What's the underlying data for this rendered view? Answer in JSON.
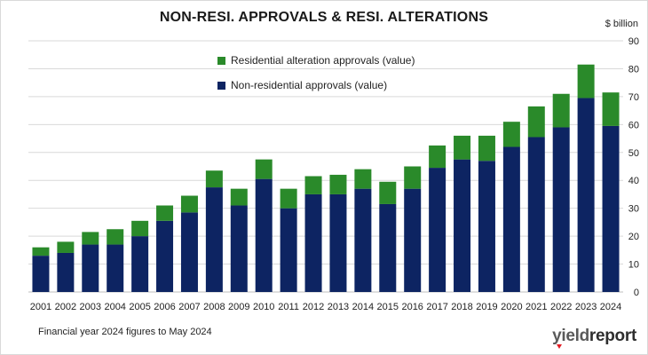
{
  "chart_data": {
    "type": "bar",
    "stacked": true,
    "title": "NON-RESI. APPROVALS & RESI. ALTERATIONS",
    "ylabel": "$ billion",
    "ylim": [
      0,
      90
    ],
    "yticks": [
      0,
      10,
      20,
      30,
      40,
      50,
      60,
      70,
      80,
      90
    ],
    "y_axis_side": "right",
    "grid": true,
    "legend_position": "top-center",
    "categories": [
      "2001",
      "2002",
      "2003",
      "2004",
      "2005",
      "2006",
      "2007",
      "2008",
      "2009",
      "2010",
      "2011",
      "2012",
      "2013",
      "2014",
      "2015",
      "2016",
      "2017",
      "2018",
      "2019",
      "2020",
      "2021",
      "2022",
      "2023",
      "2024"
    ],
    "series": [
      {
        "name": "Non-residential approvals (value)",
        "color": "#0d2462",
        "values": [
          13,
          14,
          17,
          17,
          20,
          25.5,
          28.5,
          37.5,
          31,
          40.5,
          30,
          35,
          35,
          37,
          31.5,
          37,
          44.5,
          47.5,
          47,
          52,
          55.5,
          59,
          69.5,
          59.5
        ]
      },
      {
        "name": "Residential alteration approvals (value)",
        "color": "#2a8a2a",
        "values": [
          3,
          4,
          4.5,
          5.5,
          5.5,
          5.5,
          6,
          6,
          6,
          7,
          7,
          6.5,
          7,
          7,
          8,
          8,
          8,
          8.5,
          9,
          9,
          11,
          12,
          12,
          12
        ]
      }
    ]
  },
  "legend": {
    "items": [
      {
        "label": "Residential alteration approvals (value)",
        "color": "#2a8a2a"
      },
      {
        "label": "Non-residential approvals (value)",
        "color": "#0d2462"
      }
    ]
  },
  "footnote": "Financial year 2024 figures to May 2024",
  "brand": {
    "part1": "yield",
    "part2": "report"
  },
  "colors": {
    "gridline": "#d9d9d9",
    "axis": "#bfbfbf"
  }
}
